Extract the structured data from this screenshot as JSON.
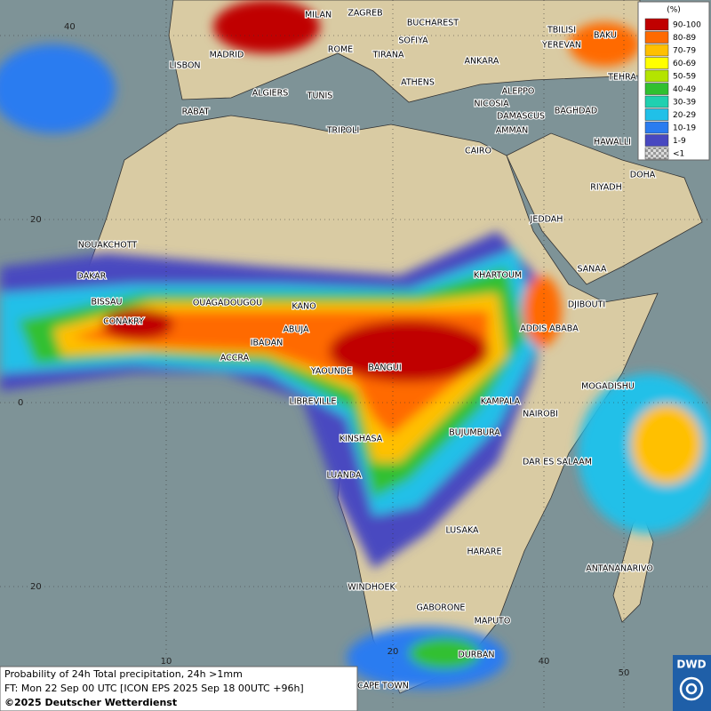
{
  "map": {
    "cities": [
      "MILAN",
      "ZAGREB",
      "BUCHAREST",
      "MADRID",
      "ROME",
      "SOFIYA",
      "TIRANA",
      "ANKARA",
      "TBILISI",
      "BAKU",
      "YEREVAN",
      "TEHRA",
      "LISBON",
      "ATHENS",
      "ALGIERS",
      "TUNIS",
      "ALEPPO",
      "RABAT",
      "NICOSIA",
      "BAGHDAD",
      "TRIPOLI",
      "DAMASCUS",
      "AMMAN",
      "CAIRO",
      "HAWALLI",
      "DOHA",
      "RIYADH",
      "JEDDAH",
      "NOUAKCHOTT",
      "SANAA",
      "KHARTOUM",
      "DAKAR",
      "BISSAU",
      "OUAGADOUGOU",
      "KANO",
      "DJIBOUTI",
      "CONAKRY",
      "ABUJA",
      "ADDIS ABABA",
      "IBADAN",
      "ACCRA",
      "YAOUNDE",
      "BANGUI",
      "MOGADISHU",
      "LIBREVILLE",
      "KAMPALA",
      "NAIROBI",
      "BUJUMBURA",
      "KINSHASA",
      "DAR ES SALAAM",
      "LUANDA",
      "LUSAKA",
      "HARARE",
      "ANTANANARIVO",
      "WINDHOEK",
      "GABORONE",
      "MAPUTO",
      "DURBAN",
      "CAPE TOWN"
    ],
    "lat_labels": [
      "40",
      "20",
      "0",
      "20"
    ],
    "lon_labels": [
      "10",
      "20",
      "40",
      "50"
    ]
  },
  "legend": {
    "unit": "(%)",
    "items": [
      {
        "label": "90-100",
        "color": "#c00000"
      },
      {
        "label": "80-89",
        "color": "#ff6a00"
      },
      {
        "label": "70-79",
        "color": "#ffc000"
      },
      {
        "label": "60-69",
        "color": "#ffff00"
      },
      {
        "label": "50-59",
        "color": "#b4e400"
      },
      {
        "label": "40-49",
        "color": "#30c030"
      },
      {
        "label": "30-39",
        "color": "#20d0b0"
      },
      {
        "label": "20-29",
        "color": "#20c0e8"
      },
      {
        "label": "10-19",
        "color": "#2a7cf0"
      },
      {
        "label": "1-9",
        "color": "#4848c0"
      },
      {
        "label": "<1",
        "color": "#b0b0b0"
      }
    ]
  },
  "footer": {
    "line1": "Probability of 24h Total precipitation, 24h >1mm",
    "line2": "FT: Mon 22 Sep 00 UTC [ICON EPS 2025 Sep 18 00UTC +96h]",
    "copyright": "©2025 Deutscher Wetterdienst"
  },
  "logo": "DWD"
}
